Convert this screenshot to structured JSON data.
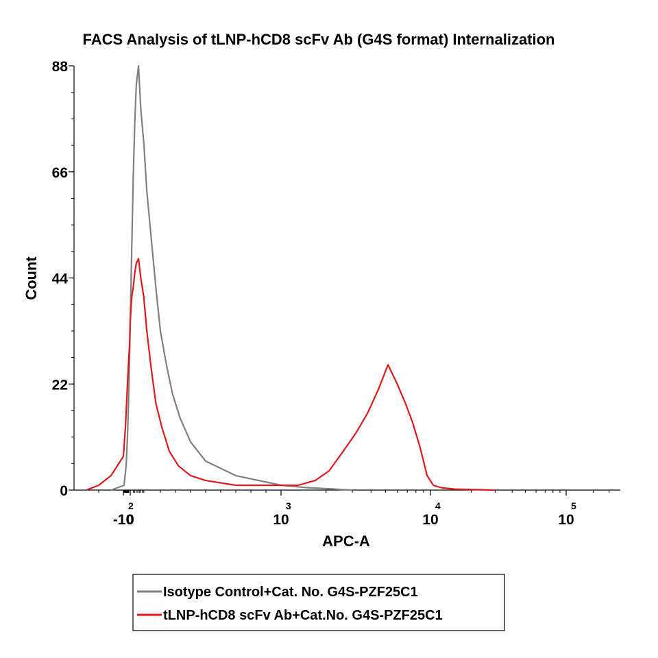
{
  "chart_data": {
    "type": "line",
    "title": "FACS Analysis of tLNP-hCD8 scFv Ab (G4S format) Internalization",
    "xlabel": "APC-A",
    "ylabel": "Count",
    "ylim": [
      0,
      88
    ],
    "y_ticks": [
      "0",
      "22",
      "44",
      "66",
      "88"
    ],
    "x_scale": "biexponential",
    "x_ticks": [
      {
        "value": -100,
        "base": "-10",
        "exp": "2"
      },
      {
        "value": 0,
        "base": "0",
        "exp": ""
      },
      {
        "value": 1000,
        "base": "10",
        "exp": "3"
      },
      {
        "value": 10000,
        "base": "10",
        "exp": "4"
      },
      {
        "value": 100000,
        "base": "10",
        "exp": "5"
      }
    ],
    "grid": false,
    "legend_position": "bottom",
    "series": [
      {
        "name": "Isotype Control+Cat. No. G4S-PZF25C1",
        "color": "#808080",
        "x": [
          -150,
          -90,
          -60,
          -40,
          -25,
          -10,
          0,
          10,
          20,
          30,
          40,
          55,
          70,
          90,
          110,
          140,
          170,
          200,
          240,
          280,
          330,
          400,
          500,
          700,
          1000,
          1500,
          2000,
          3000
        ],
        "y": [
          0,
          1,
          5,
          11,
          18,
          27,
          35,
          50,
          65,
          76,
          84,
          88,
          79,
          72,
          62,
          52,
          42,
          33,
          26,
          20,
          15,
          10,
          6,
          3,
          1,
          0.5,
          0.3,
          0
        ]
      },
      {
        "name": "tLNP-hCD8 scFv Ab+Cat.No. G4S-PZF25C1",
        "color": "#e0191b",
        "x": [
          -250,
          -200,
          -150,
          -100,
          -70,
          -50,
          -30,
          -10,
          0,
          10,
          20,
          30,
          40,
          55,
          70,
          90,
          110,
          140,
          170,
          210,
          260,
          320,
          400,
          500,
          700,
          1000,
          1300,
          1700,
          2100,
          2600,
          3200,
          3800,
          4500,
          5200,
          6000,
          6800,
          7600,
          8500,
          9500,
          10500,
          12000,
          15000,
          30000
        ],
        "y": [
          0,
          1,
          3,
          7,
          13,
          19,
          25,
          30,
          35,
          40,
          42,
          45,
          47,
          48,
          44,
          40,
          33,
          25,
          18,
          13,
          8,
          5,
          3,
          2,
          1,
          1,
          1,
          2,
          4,
          8,
          12,
          16,
          21,
          26,
          22,
          18,
          14,
          9,
          3,
          1,
          0.5,
          0.2,
          0
        ]
      }
    ]
  }
}
